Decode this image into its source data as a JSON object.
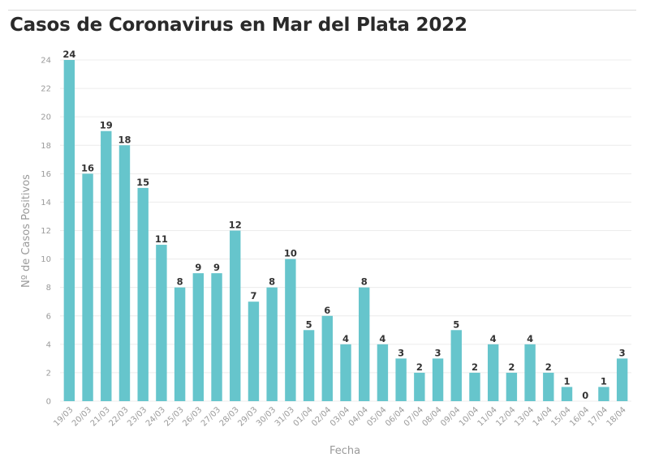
{
  "title": "Casos de Coronavirus en Mar del Plata 2022",
  "chart_data": {
    "type": "bar",
    "title": "Casos de Coronavirus en Mar del Plata 2022",
    "xlabel": "Fecha",
    "ylabel": "Nº de Casos Positivos",
    "ylim": [
      0,
      24
    ],
    "yticks": [
      0,
      2,
      4,
      6,
      8,
      10,
      12,
      14,
      16,
      18,
      20,
      22,
      24
    ],
    "grid": true,
    "bar_color": "#66c5cc",
    "categories": [
      "19/03",
      "20/03",
      "21/03",
      "22/03",
      "23/03",
      "24/03",
      "25/03",
      "26/03",
      "27/03",
      "28/03",
      "29/03",
      "30/03",
      "31/03",
      "01/04",
      "02/04",
      "03/04",
      "04/04",
      "05/04",
      "06/04",
      "07/04",
      "08/04",
      "09/04",
      "10/04",
      "11/04",
      "12/04",
      "13/04",
      "14/04",
      "15/04",
      "16/04",
      "17/04",
      "18/04"
    ],
    "values": [
      24,
      16,
      19,
      18,
      15,
      11,
      8,
      9,
      9,
      12,
      7,
      8,
      10,
      5,
      6,
      4,
      8,
      4,
      3,
      2,
      3,
      5,
      2,
      4,
      2,
      4,
      2,
      1,
      0,
      1,
      3
    ]
  }
}
